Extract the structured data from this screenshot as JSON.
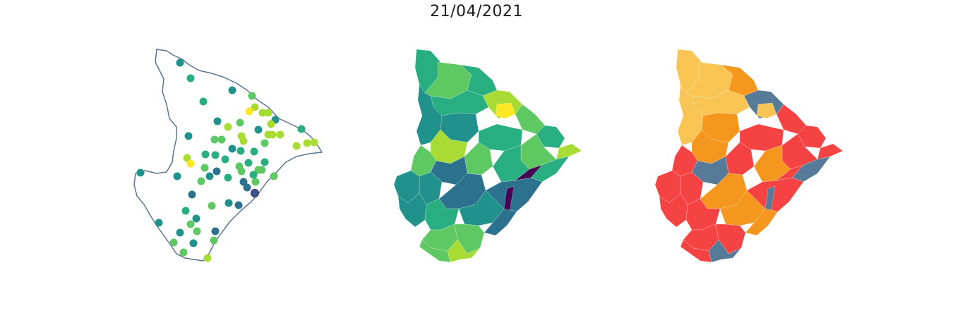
{
  "figure": {
    "title": "21/04/2021"
  },
  "colors": {
    "outline": "#5a7591",
    "viridis": [
      "#440154",
      "#3b528b",
      "#2c728e",
      "#21918c",
      "#28ae80",
      "#5ec962",
      "#a8db34",
      "#fde725"
    ],
    "categorical": {
      "yellow": "#f8c555",
      "orange": "#f5971e",
      "red": "#f54343",
      "slate": "#567a98"
    }
  },
  "panels": [
    {
      "id": "stations-map",
      "type": "point-map"
    },
    {
      "id": "continuous-choropleth",
      "type": "choropleth",
      "palette": "viridis"
    },
    {
      "id": "categorical-choropleth",
      "type": "choropleth",
      "palette": "categorical"
    }
  ]
}
